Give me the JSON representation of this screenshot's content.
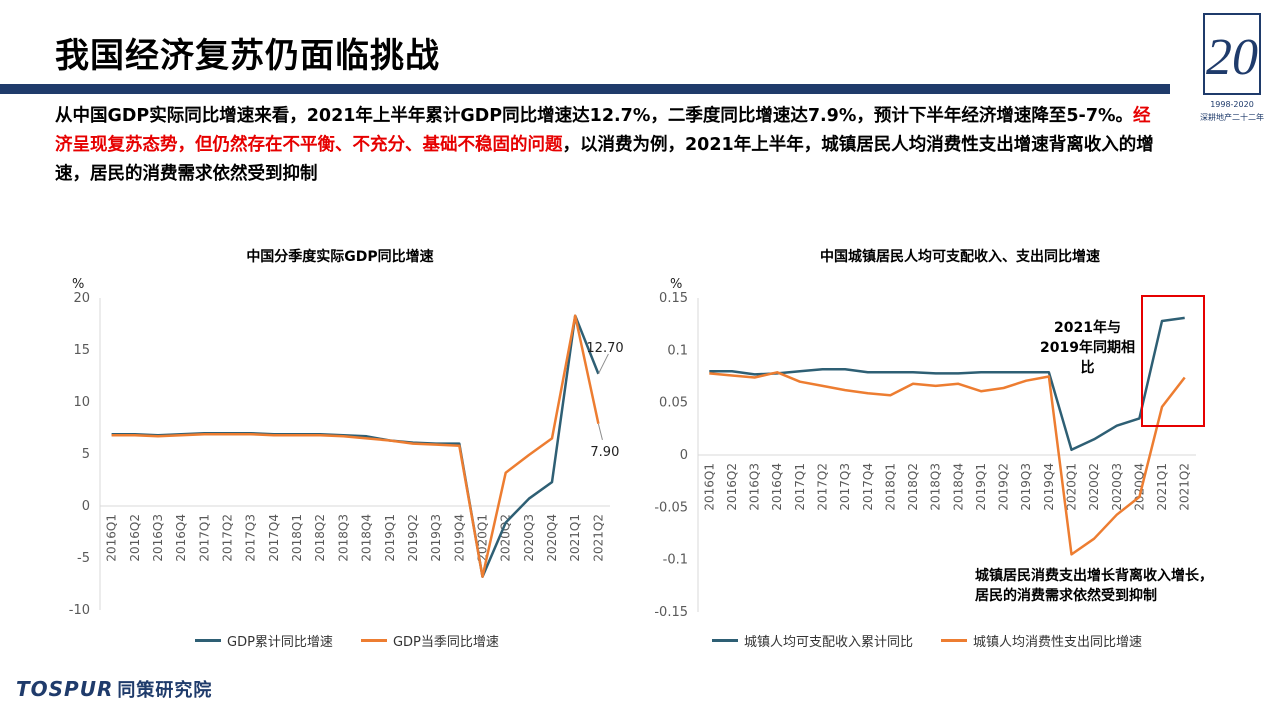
{
  "page": {
    "title": "我国经济复苏仍面临挑战",
    "intro_part1": "从中国GDP实际同比增速来看，2021年上半年累计GDP同比增速达12.7%，二季度同比增速达7.9%，预计下半年经济增速降至5-7%。",
    "intro_red": "经济呈现复苏态势，但仍然存在不平衡、不充分、基础不稳固的问题",
    "intro_part2": "，以消费为例，2021年上半年，城镇居民人均消费性支出增速背离收入的增速，居民的消费需求依然受到抑制",
    "logo_year": "20",
    "logo_sub1": "1998-2020",
    "logo_sub2": "深耕地产二十二年",
    "brand_latin": "TOSPUR",
    "brand_cn": "同策研究院"
  },
  "colors": {
    "teal": "#2e5f74",
    "orange": "#ed7d31",
    "navy": "#1f3b6b",
    "red": "#e60000",
    "axis": "#d9d9d9",
    "tick_text": "#595959"
  },
  "chart_data": [
    {
      "type": "line",
      "title": "中国分季度实际GDP同比增速",
      "ylabel": "%",
      "ylim": [
        -10,
        20
      ],
      "yticks": [
        "-10",
        "-5",
        "0",
        "5",
        "10",
        "15",
        "20"
      ],
      "categories": [
        "2016Q1",
        "2016Q2",
        "2016Q3",
        "2016Q4",
        "2017Q1",
        "2017Q2",
        "2017Q3",
        "2017Q4",
        "2018Q1",
        "2018Q2",
        "2018Q3",
        "2018Q4",
        "2019Q1",
        "2019Q2",
        "2019Q3",
        "2019Q4",
        "2020Q1",
        "2020Q2",
        "2020Q3",
        "2020Q4",
        "2021Q1",
        "2021Q2"
      ],
      "series": [
        {
          "name": "GDP累计同比增速",
          "color": "#2e5f74",
          "values": [
            6.9,
            6.9,
            6.8,
            6.9,
            7.0,
            7.0,
            7.0,
            6.9,
            6.9,
            6.9,
            6.8,
            6.7,
            6.3,
            6.1,
            6.0,
            6.0,
            -6.8,
            -1.6,
            0.7,
            2.3,
            18.3,
            12.7
          ]
        },
        {
          "name": "GDP当季同比增速",
          "color": "#ed7d31",
          "values": [
            6.8,
            6.8,
            6.7,
            6.8,
            6.9,
            6.9,
            6.9,
            6.8,
            6.8,
            6.8,
            6.7,
            6.5,
            6.3,
            6.0,
            5.9,
            5.8,
            -6.8,
            3.2,
            4.9,
            6.5,
            18.3,
            7.9
          ]
        }
      ],
      "annotations": [
        {
          "text": "12.70",
          "series": 0,
          "index": 21
        },
        {
          "text": "7.90",
          "series": 1,
          "index": 21
        }
      ]
    },
    {
      "type": "line",
      "title": "中国城镇居民人均可支配收入、支出同比增速",
      "ylabel": "%",
      "ylim": [
        -0.15,
        0.15
      ],
      "yticks": [
        "-0.15",
        "-0.1",
        "-0.05",
        "0",
        "0.05",
        "0.1",
        "0.15"
      ],
      "categories": [
        "2016Q1",
        "2016Q2",
        "2016Q3",
        "2016Q4",
        "2017Q1",
        "2017Q2",
        "2017Q3",
        "2017Q4",
        "2018Q1",
        "2018Q2",
        "2018Q3",
        "2018Q4",
        "2019Q1",
        "2019Q2",
        "2019Q3",
        "2019Q4",
        "2020Q1",
        "2020Q2",
        "2020Q3",
        "2020Q4",
        "2021Q1",
        "2021Q2"
      ],
      "series": [
        {
          "name": "城镇人均可支配收入累计同比",
          "color": "#2e5f74",
          "values": [
            0.08,
            0.08,
            0.077,
            0.078,
            0.08,
            0.082,
            0.082,
            0.079,
            0.079,
            0.079,
            0.078,
            0.078,
            0.079,
            0.079,
            0.079,
            0.079,
            0.005,
            0.015,
            0.028,
            0.035,
            0.128,
            0.131
          ]
        },
        {
          "name": "城镇人均消费性支出同比增速",
          "color": "#ed7d31",
          "values": [
            0.078,
            0.076,
            0.074,
            0.079,
            0.07,
            0.066,
            0.062,
            0.059,
            0.057,
            0.068,
            0.066,
            0.068,
            0.061,
            0.064,
            0.071,
            0.075,
            -0.095,
            -0.08,
            -0.057,
            -0.04,
            0.046,
            0.074
          ]
        }
      ],
      "highlight_note": "2021年与2019年同期相比",
      "bottom_note": "城镇居民消费支出增长背离收入增长，居民的消费需求依然受到抑制"
    }
  ]
}
